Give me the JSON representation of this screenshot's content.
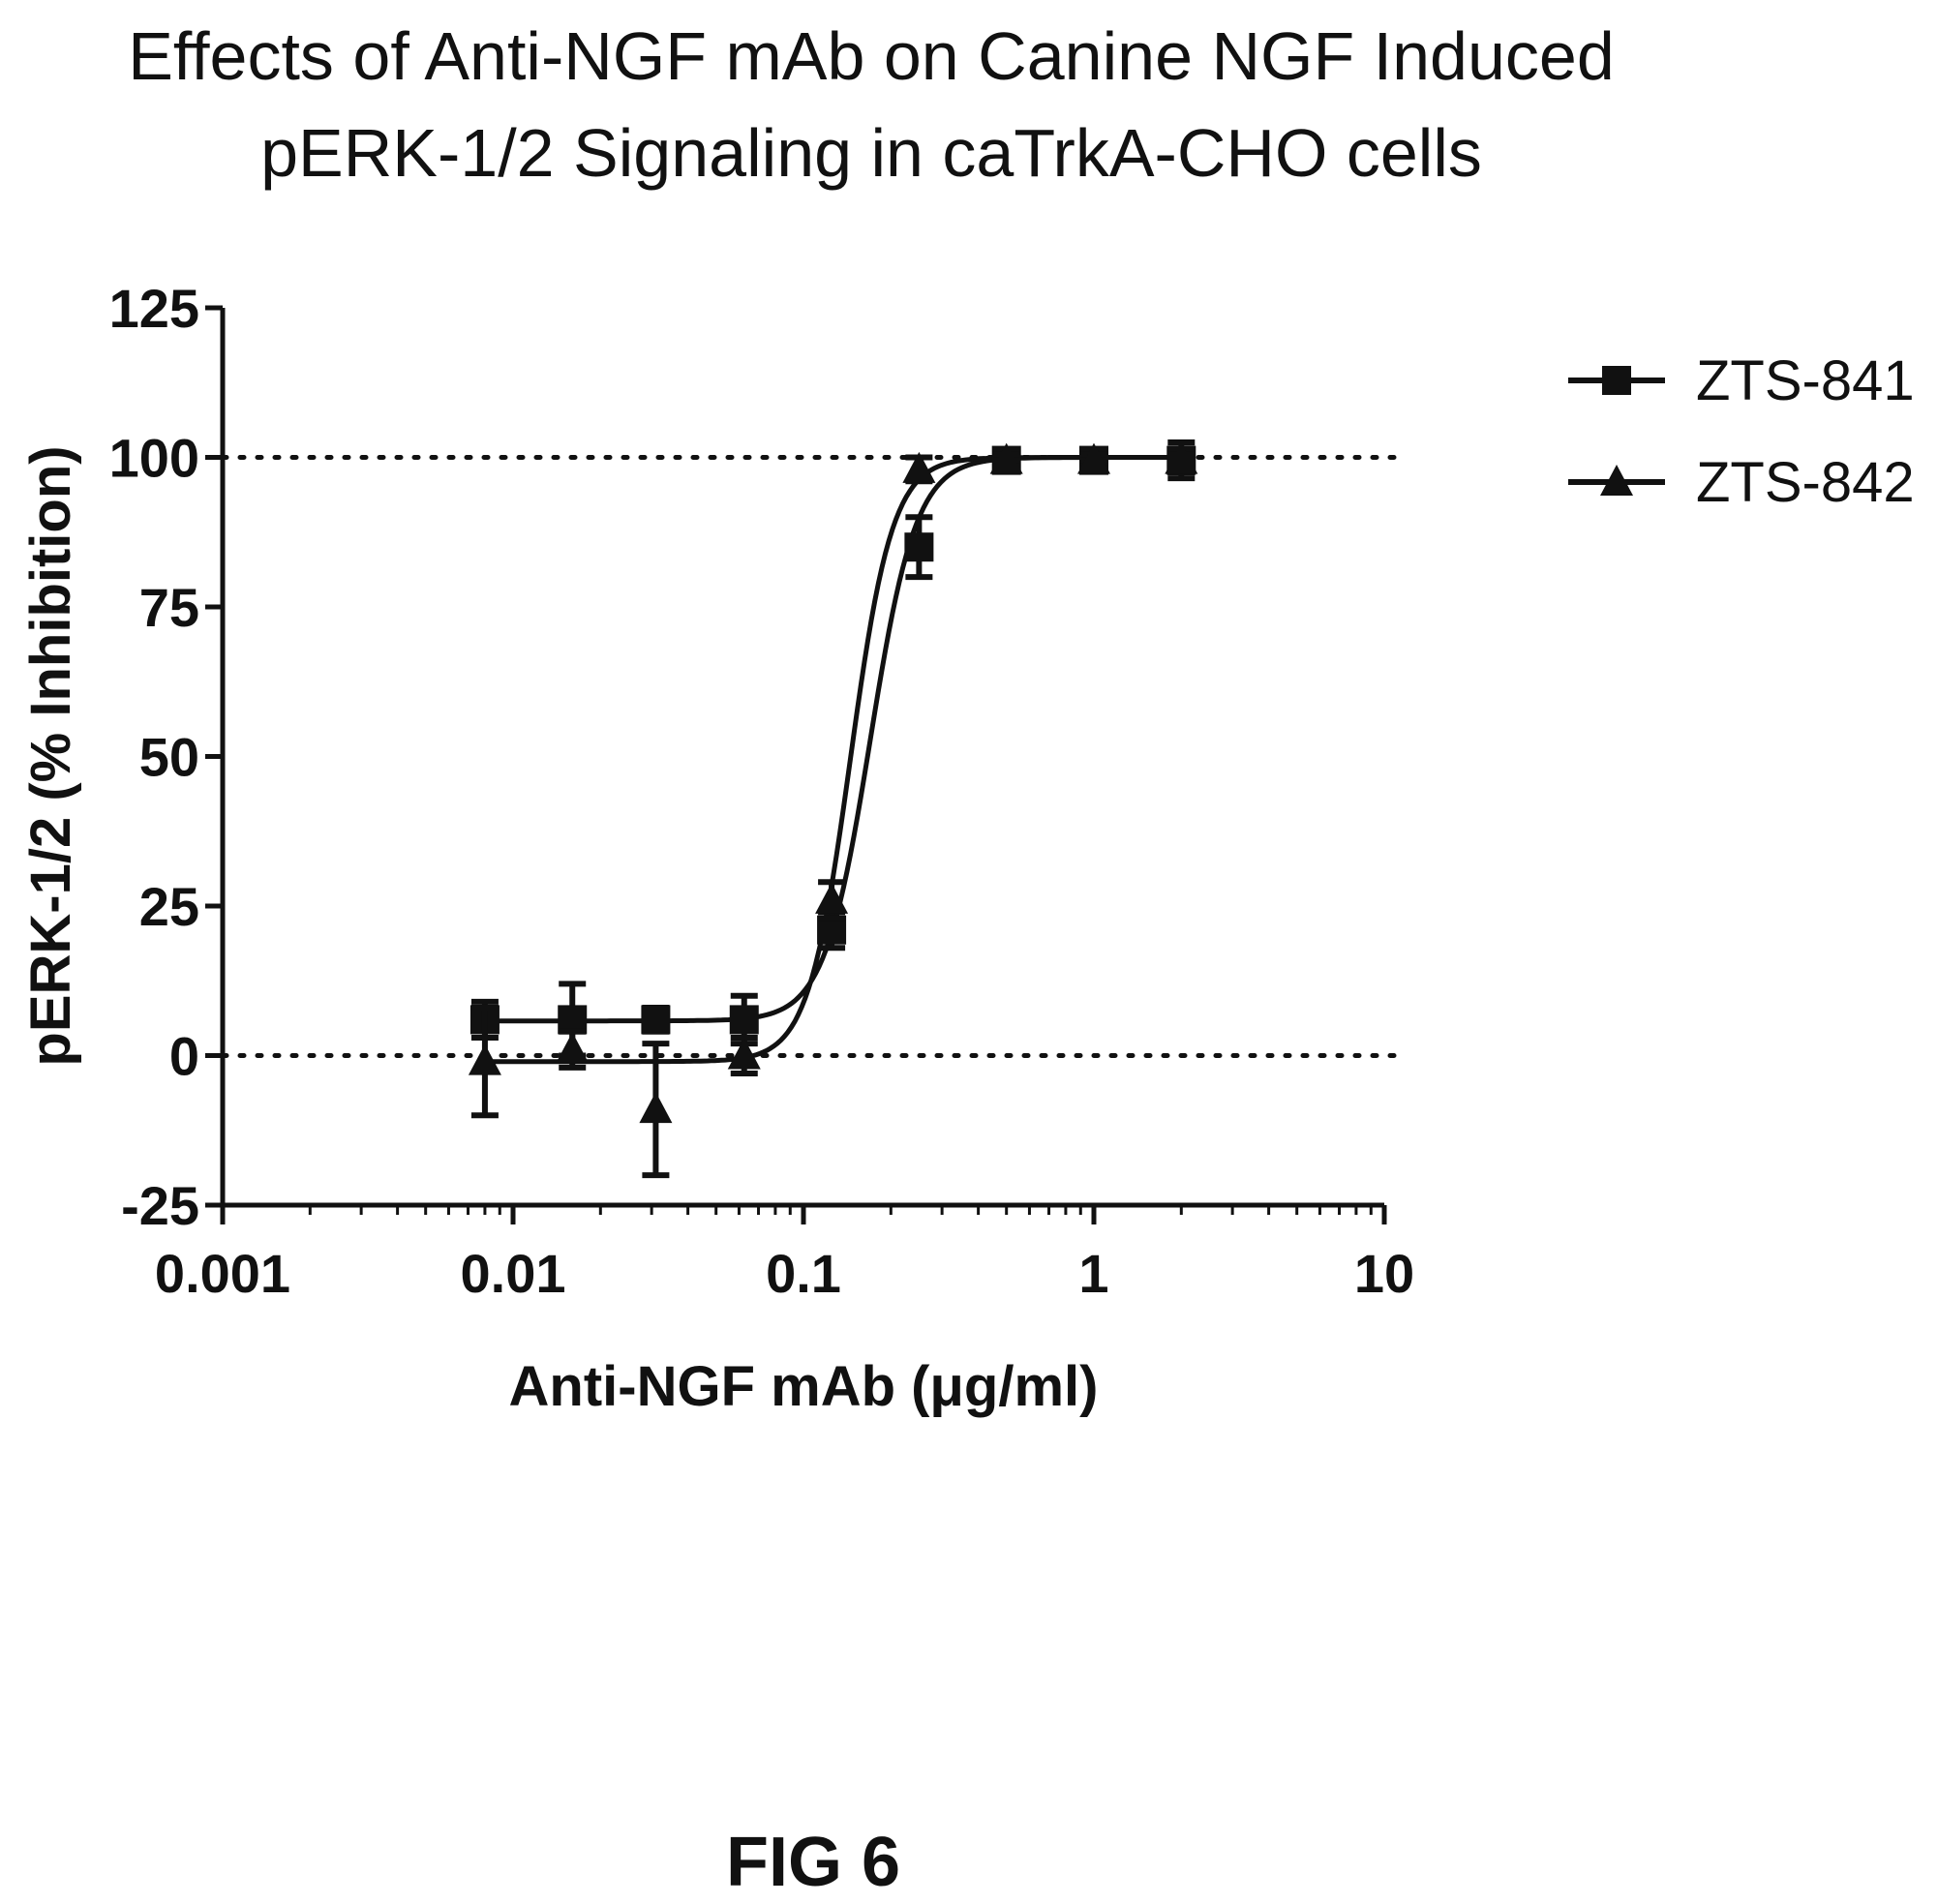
{
  "figure_label": "FIG 6",
  "chart_data": {
    "type": "scatter",
    "title_line1": "Effects of Anti-NGF mAb on Canine NGF Induced",
    "title_line2": "pERK-1/2 Signaling in caTrkA-CHO cells",
    "xlabel": "Anti-NGF mAb (μg/ml)",
    "ylabel": "pERK-1/2 (% Inhibition)",
    "x_scale": "log",
    "xlim": [
      0.001,
      10
    ],
    "ylim": [
      -25,
      125
    ],
    "x_ticks": [
      0.001,
      0.01,
      0.1,
      1,
      10
    ],
    "x_tick_labels": [
      "0.001",
      "0.01",
      "0.1",
      "1",
      "10"
    ],
    "y_ticks": [
      -25,
      0,
      25,
      50,
      75,
      100,
      125
    ],
    "y_tick_labels": [
      "-25",
      "0",
      "25",
      "50",
      "75",
      "100",
      "125"
    ],
    "reference_lines": [
      0,
      100
    ],
    "legend_position": "top-right",
    "series": [
      {
        "name": "ZTS-841",
        "marker": "square",
        "x": [
          0.008,
          0.016,
          0.031,
          0.0625,
          0.125,
          0.25,
          0.5,
          1,
          2
        ],
        "y": [
          6,
          6,
          6,
          6,
          21,
          85,
          99.5,
          99.5,
          99.5
        ],
        "error": [
          3,
          6,
          2,
          4,
          3,
          5,
          1,
          1,
          3
        ],
        "fit": {
          "bottom": 5.8,
          "top": 100,
          "ec50": 0.17,
          "hill": 5.5
        }
      },
      {
        "name": "ZTS-842",
        "marker": "triangle",
        "x": [
          0.008,
          0.016,
          0.031,
          0.0625,
          0.125,
          0.25,
          0.5,
          1,
          2
        ],
        "y": [
          -1,
          1,
          -9,
          0,
          26,
          98,
          99.5,
          99.5,
          99.5
        ],
        "error": [
          9,
          3,
          11,
          3,
          3,
          2,
          1,
          1,
          2
        ],
        "fit": {
          "bottom": -1,
          "top": 100,
          "ec50": 0.145,
          "hill": 6
        }
      }
    ]
  }
}
